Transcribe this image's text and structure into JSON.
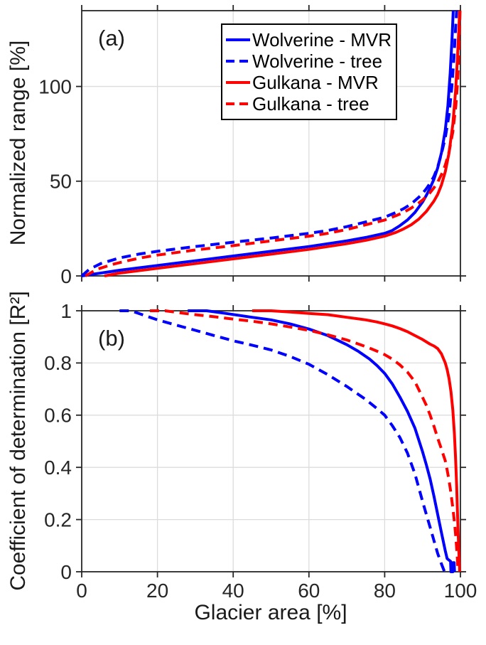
{
  "figure": {
    "background": "#ffffff",
    "text_color": "#262626",
    "grid_color": "#dcdcdc",
    "axis_color": "#262626"
  },
  "legend": {
    "position": "top-right-of-panel-a",
    "entries": [
      {
        "label": "Wolverine - MVR",
        "color": "#0000ff",
        "line_style": "solid"
      },
      {
        "label": "Wolverine - tree",
        "color": "#0000ff",
        "line_style": "dashed"
      },
      {
        "label": "Gulkana - MVR",
        "color": "#ff0000",
        "line_style": "solid"
      },
      {
        "label": "Gulkana - tree",
        "color": "#ff0000",
        "line_style": "dashed"
      }
    ]
  },
  "chart_data": [
    {
      "type": "line",
      "panel_label": "(a)",
      "title": "",
      "xlabel": "",
      "ylabel": "Normalized range [%]",
      "xlim": [
        0,
        100
      ],
      "ylim": [
        0,
        140
      ],
      "x_ticks": [
        0,
        20,
        40,
        60,
        80,
        100
      ],
      "x_tick_labels": [
        "",
        "",
        "",
        "",
        "",
        ""
      ],
      "y_ticks": [
        0,
        50,
        100
      ],
      "y_tick_labels": [
        "0",
        "50",
        "100"
      ],
      "grid": true,
      "series": [
        {
          "name": "Wolverine - MVR",
          "id": "wolverine-mvr",
          "color": "#0000ff",
          "line_style": "solid",
          "points": [
            [
              0,
              0
            ],
            [
              5,
              1.5
            ],
            [
              10,
              3
            ],
            [
              20,
              5.5
            ],
            [
              30,
              8
            ],
            [
              40,
              10.5
            ],
            [
              50,
              13
            ],
            [
              60,
              15.5
            ],
            [
              70,
              18.5
            ],
            [
              75,
              20.3
            ],
            [
              80,
              22.5
            ],
            [
              82,
              24
            ],
            [
              84,
              26.5
            ],
            [
              86,
              29.5
            ],
            [
              88,
              33.5
            ],
            [
              90,
              39
            ],
            [
              91,
              42.5
            ],
            [
              92,
              46.5
            ],
            [
              93,
              51
            ],
            [
              94,
              57
            ],
            [
              95,
              65
            ],
            [
              96,
              77
            ],
            [
              96.7,
              90
            ],
            [
              97.3,
              107
            ],
            [
              97.8,
              126
            ],
            [
              98.1,
              140
            ]
          ]
        },
        {
          "name": "Wolverine - tree",
          "id": "wolverine-tree",
          "color": "#0000ff",
          "line_style": "dashed",
          "points": [
            [
              0,
              0
            ],
            [
              2,
              3.5
            ],
            [
              5,
              6.5
            ],
            [
              10,
              9.5
            ],
            [
              15,
              11.5
            ],
            [
              20,
              13
            ],
            [
              30,
              15.5
            ],
            [
              40,
              17.8
            ],
            [
              50,
              20
            ],
            [
              60,
              22.5
            ],
            [
              65,
              24
            ],
            [
              70,
              26
            ],
            [
              75,
              28.5
            ],
            [
              80,
              31
            ],
            [
              83,
              33.5
            ],
            [
              85,
              35.5
            ],
            [
              87,
              38
            ],
            [
              89,
              41.5
            ],
            [
              90,
              43.5
            ],
            [
              91,
              46
            ],
            [
              92,
              49
            ],
            [
              93,
              52.5
            ],
            [
              94,
              57.5
            ],
            [
              95,
              64.5
            ],
            [
              96,
              73
            ],
            [
              97,
              85
            ],
            [
              97.7,
              99
            ],
            [
              98.3,
              115
            ],
            [
              98.7,
              130
            ],
            [
              99,
              140
            ]
          ]
        },
        {
          "name": "Gulkana - MVR",
          "id": "gulkana-mvr",
          "color": "#ff0000",
          "line_style": "solid",
          "points": [
            [
              6,
              0
            ],
            [
              10,
              1.5
            ],
            [
              20,
              4
            ],
            [
              30,
              6.5
            ],
            [
              40,
              9
            ],
            [
              50,
              11.5
            ],
            [
              60,
              14
            ],
            [
              70,
              17
            ],
            [
              75,
              18.8
            ],
            [
              80,
              21
            ],
            [
              83,
              23
            ],
            [
              85,
              24.8
            ],
            [
              87,
              27
            ],
            [
              89,
              30
            ],
            [
              91,
              34
            ],
            [
              93,
              39.5
            ],
            [
              94,
              43
            ],
            [
              95,
              48
            ],
            [
              96,
              55
            ],
            [
              97,
              65
            ],
            [
              98,
              80
            ],
            [
              98.7,
              97
            ],
            [
              99.2,
              114
            ],
            [
              99.6,
              131
            ],
            [
              99.8,
              140
            ]
          ]
        },
        {
          "name": "Gulkana - tree",
          "id": "gulkana-tree",
          "color": "#ff0000",
          "line_style": "dashed",
          "points": [
            [
              1,
              0
            ],
            [
              4,
              3.5
            ],
            [
              8,
              6
            ],
            [
              12,
              8
            ],
            [
              16,
              9.7
            ],
            [
              20,
              11
            ],
            [
              30,
              13.7
            ],
            [
              40,
              16
            ],
            [
              50,
              18.5
            ],
            [
              60,
              21
            ],
            [
              65,
              22.5
            ],
            [
              70,
              24.5
            ],
            [
              75,
              27
            ],
            [
              80,
              29.5
            ],
            [
              83,
              31.8
            ],
            [
              85,
              33.5
            ],
            [
              87,
              35.8
            ],
            [
              89,
              38.5
            ],
            [
              90,
              40
            ],
            [
              92,
              44
            ],
            [
              93,
              46.5
            ],
            [
              94,
              49.5
            ],
            [
              95,
              53.5
            ],
            [
              96,
              58.5
            ],
            [
              97,
              65.5
            ],
            [
              98,
              76
            ],
            [
              98.8,
              90
            ],
            [
              99.3,
              104
            ],
            [
              99.6,
              120
            ],
            [
              99.9,
              140
            ]
          ]
        }
      ]
    },
    {
      "type": "line",
      "panel_label": "(b)",
      "title": "",
      "xlabel": "Glacier area [%]",
      "ylabel": "Coefficient of determination [R²]",
      "xlim": [
        0,
        100
      ],
      "ylim": [
        0,
        1
      ],
      "x_ticks": [
        0,
        20,
        40,
        60,
        80,
        100
      ],
      "x_tick_labels": [
        "0",
        "20",
        "40",
        "60",
        "80",
        "100"
      ],
      "y_ticks": [
        0,
        0.2,
        0.4,
        0.6,
        0.8,
        1
      ],
      "y_tick_labels": [
        "0",
        "0.2",
        "0.4",
        "0.6",
        "0.8",
        "1"
      ],
      "grid": true,
      "series": [
        {
          "name": "Wolverine - MVR",
          "id": "wolverine-mvr",
          "color": "#0000ff",
          "line_style": "solid",
          "points": [
            [
              28,
              1.0
            ],
            [
              33,
              1.0
            ],
            [
              38,
              0.99
            ],
            [
              45,
              0.975
            ],
            [
              50,
              0.965
            ],
            [
              55,
              0.95
            ],
            [
              60,
              0.93
            ],
            [
              65,
              0.905
            ],
            [
              70,
              0.87
            ],
            [
              73,
              0.845
            ],
            [
              76,
              0.815
            ],
            [
              78,
              0.79
            ],
            [
              80,
              0.76
            ],
            [
              82,
              0.72
            ],
            [
              84,
              0.67
            ],
            [
              86,
              0.615
            ],
            [
              88,
              0.55
            ],
            [
              89,
              0.505
            ],
            [
              90,
              0.46
            ],
            [
              91,
              0.41
            ],
            [
              92,
              0.355
            ],
            [
              93,
              0.29
            ],
            [
              94,
              0.22
            ],
            [
              95,
              0.15
            ],
            [
              96,
              0.08
            ],
            [
              96.5,
              0.05
            ],
            [
              97.4,
              0.04
            ],
            [
              97.5,
              0
            ],
            [
              98,
              0
            ],
            [
              98,
              0.035
            ],
            [
              98.35,
              0.035
            ],
            [
              98.45,
              0
            ]
          ]
        },
        {
          "name": "Wolverine - tree",
          "id": "wolverine-tree",
          "color": "#0000ff",
          "line_style": "dashed",
          "points": [
            [
              10,
              1.0
            ],
            [
              13,
              1.0
            ],
            [
              16,
              0.985
            ],
            [
              20,
              0.965
            ],
            [
              25,
              0.945
            ],
            [
              30,
              0.925
            ],
            [
              35,
              0.905
            ],
            [
              40,
              0.885
            ],
            [
              45,
              0.868
            ],
            [
              50,
              0.85
            ],
            [
              55,
              0.825
            ],
            [
              60,
              0.795
            ],
            [
              65,
              0.755
            ],
            [
              70,
              0.71
            ],
            [
              75,
              0.66
            ],
            [
              78,
              0.625
            ],
            [
              80,
              0.6
            ],
            [
              82,
              0.56
            ],
            [
              84,
              0.515
            ],
            [
              86,
              0.455
            ],
            [
              88,
              0.375
            ],
            [
              90,
              0.27
            ],
            [
              91,
              0.22
            ],
            [
              92,
              0.17
            ],
            [
              93,
              0.12
            ],
            [
              94,
              0.07
            ],
            [
              95,
              0.03
            ],
            [
              95.8,
              0
            ]
          ]
        },
        {
          "name": "Gulkana - MVR",
          "id": "gulkana-mvr",
          "color": "#ff0000",
          "line_style": "solid",
          "points": [
            [
              45,
              1.0
            ],
            [
              50,
              1.0
            ],
            [
              55,
              0.995
            ],
            [
              60,
              0.99
            ],
            [
              65,
              0.985
            ],
            [
              70,
              0.975
            ],
            [
              75,
              0.965
            ],
            [
              78,
              0.957
            ],
            [
              80,
              0.95
            ],
            [
              82,
              0.942
            ],
            [
              84,
              0.932
            ],
            [
              86,
              0.92
            ],
            [
              88,
              0.905
            ],
            [
              90,
              0.89
            ],
            [
              92,
              0.872
            ],
            [
              93,
              0.865
            ],
            [
              94,
              0.855
            ],
            [
              95,
              0.835
            ],
            [
              96,
              0.8
            ],
            [
              96.5,
              0.775
            ],
            [
              97,
              0.74
            ],
            [
              97.5,
              0.69
            ],
            [
              98,
              0.62
            ],
            [
              98.4,
              0.53
            ],
            [
              98.7,
              0.44
            ],
            [
              99,
              0.33
            ],
            [
              99.2,
              0.24
            ],
            [
              99.4,
              0.15
            ],
            [
              99.6,
              0.07
            ],
            [
              99.75,
              0.02
            ],
            [
              99.8,
              0
            ]
          ]
        },
        {
          "name": "Gulkana - tree",
          "id": "gulkana-tree",
          "color": "#ff0000",
          "line_style": "dashed",
          "points": [
            [
              18,
              1.0
            ],
            [
              22,
              1.0
            ],
            [
              26,
              0.992
            ],
            [
              30,
              0.985
            ],
            [
              35,
              0.977
            ],
            [
              40,
              0.968
            ],
            [
              45,
              0.96
            ],
            [
              50,
              0.95
            ],
            [
              55,
              0.938
            ],
            [
              60,
              0.925
            ],
            [
              65,
              0.908
            ],
            [
              70,
              0.888
            ],
            [
              73,
              0.873
            ],
            [
              76,
              0.857
            ],
            [
              78,
              0.845
            ],
            [
              80,
              0.832
            ],
            [
              82,
              0.815
            ],
            [
              84,
              0.793
            ],
            [
              86,
              0.765
            ],
            [
              88,
              0.728
            ],
            [
              90,
              0.668
            ],
            [
              91,
              0.638
            ],
            [
              92,
              0.6
            ],
            [
              93,
              0.558
            ],
            [
              94,
              0.512
            ],
            [
              95,
              0.47
            ],
            [
              96,
              0.425
            ],
            [
              96.5,
              0.39
            ],
            [
              97,
              0.35
            ],
            [
              97.5,
              0.3
            ],
            [
              98,
              0.245
            ],
            [
              98.5,
              0.18
            ],
            [
              98.8,
              0.13
            ],
            [
              99,
              0.09
            ],
            [
              99.2,
              0.05
            ],
            [
              99.35,
              0
            ]
          ]
        }
      ]
    }
  ]
}
